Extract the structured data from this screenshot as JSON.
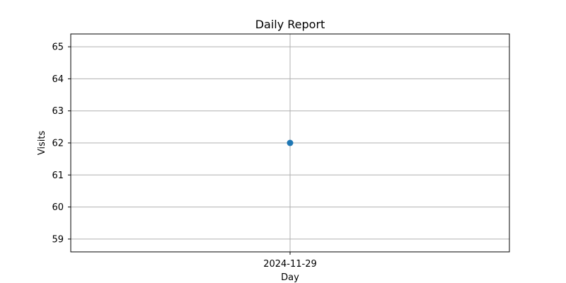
{
  "chart_data": {
    "type": "line",
    "title": "Daily Report",
    "xlabel": "Day",
    "ylabel": "Visits",
    "x": [
      "2024-11-29"
    ],
    "series": [
      {
        "values": [
          62
        ],
        "color": "#1f77b4",
        "marker": "circle"
      }
    ],
    "ylim": [
      58.6,
      65.4
    ],
    "yticks": [
      59,
      60,
      61,
      62,
      63,
      64,
      65
    ],
    "grid": true
  }
}
